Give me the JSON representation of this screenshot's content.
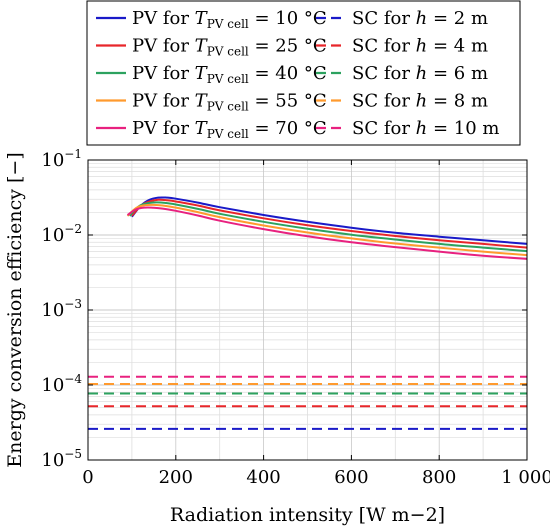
{
  "chart_data": {
    "type": "line",
    "xlabel": "Radiation intensity [W m−2]",
    "ylabel": "Energy conversion efficiency [−]",
    "xlim": [
      0,
      1000
    ],
    "ylim": [
      1e-05,
      0.1
    ],
    "yscale": "log",
    "grid": "on",
    "legend_position": "top",
    "x_ticks": [
      "0",
      "200",
      "400",
      "600",
      "800",
      "1 000"
    ],
    "y_ticks": [
      {
        "base": "10",
        "exp": "−5"
      },
      {
        "base": "10",
        "exp": "−4"
      },
      {
        "base": "10",
        "exp": "−3"
      },
      {
        "base": "10",
        "exp": "−2"
      },
      {
        "base": "10",
        "exp": "−1"
      }
    ],
    "legend": [
      {
        "pre": "PV for ",
        "sym": "T",
        "sub": "PV cell",
        "post": " = 10 °C",
        "color": "#1a1ac8",
        "dash": false
      },
      {
        "pre": "SC for ",
        "sym": "h",
        "sub": "",
        "post": " = 2 m",
        "color": "#1a1ac8",
        "dash": true
      },
      {
        "pre": "PV for ",
        "sym": "T",
        "sub": "PV cell",
        "post": " = 25 °C",
        "color": "#e8262a",
        "dash": false
      },
      {
        "pre": "SC for ",
        "sym": "h",
        "sub": "",
        "post": " = 4 m",
        "color": "#e8262a",
        "dash": true
      },
      {
        "pre": "PV for ",
        "sym": "T",
        "sub": "PV cell",
        "post": " = 40 °C",
        "color": "#2ca25f",
        "dash": false
      },
      {
        "pre": "SC for ",
        "sym": "h",
        "sub": "",
        "post": " = 6 m",
        "color": "#2ca25f",
        "dash": true
      },
      {
        "pre": "PV for ",
        "sym": "T",
        "sub": "PV cell",
        "post": " = 55 °C",
        "color": "#ff9a2e",
        "dash": false
      },
      {
        "pre": "SC for ",
        "sym": "h",
        "sub": "",
        "post": " = 8 m",
        "color": "#ff9a2e",
        "dash": true
      },
      {
        "pre": "PV for ",
        "sym": "T",
        "sub": "PV cell",
        "post": " = 70 °C",
        "color": "#e8217f",
        "dash": false
      },
      {
        "pre": "SC for ",
        "sym": "h",
        "sub": "",
        "post": " = 10 m",
        "color": "#e8217f",
        "dash": true
      }
    ],
    "series": [
      {
        "color": "#1a1ac8",
        "dash": false,
        "x": [
          100,
          120,
          140,
          160,
          180,
          200,
          250,
          300,
          400,
          500,
          600,
          700,
          800,
          900,
          1000
        ],
        "y": [
          0.0175,
          0.0245,
          0.0295,
          0.0315,
          0.0315,
          0.0305,
          0.027,
          0.0235,
          0.0185,
          0.015,
          0.0125,
          0.0107,
          0.0095,
          0.0085,
          0.0076
        ]
      },
      {
        "color": "#e8262a",
        "dash": false,
        "x": [
          100,
          120,
          140,
          160,
          180,
          200,
          250,
          300,
          400,
          500,
          600,
          700,
          800,
          900,
          1000
        ],
        "y": [
          0.018,
          0.0245,
          0.028,
          0.0295,
          0.029,
          0.028,
          0.0247,
          0.0213,
          0.0167,
          0.0135,
          0.0113,
          0.0097,
          0.0085,
          0.0076,
          0.0068
        ]
      },
      {
        "color": "#2ca25f",
        "dash": false,
        "x": [
          95,
          115,
          135,
          155,
          175,
          200,
          250,
          300,
          400,
          500,
          600,
          700,
          800,
          900,
          1000
        ],
        "y": [
          0.018,
          0.024,
          0.0265,
          0.0272,
          0.0268,
          0.0255,
          0.0223,
          0.0192,
          0.015,
          0.0121,
          0.0101,
          0.0087,
          0.0076,
          0.0068,
          0.0061
        ]
      },
      {
        "color": "#ff9a2e",
        "dash": false,
        "x": [
          90,
          110,
          130,
          150,
          170,
          200,
          250,
          300,
          400,
          500,
          600,
          700,
          800,
          900,
          1000
        ],
        "y": [
          0.018,
          0.023,
          0.025,
          0.0252,
          0.0247,
          0.0232,
          0.0202,
          0.0173,
          0.0134,
          0.0108,
          0.009,
          0.0077,
          0.0068,
          0.006,
          0.0054
        ]
      },
      {
        "color": "#e8217f",
        "dash": false,
        "x": [
          90,
          110,
          130,
          150,
          170,
          200,
          250,
          300,
          400,
          500,
          600,
          700,
          800,
          900,
          1000
        ],
        "y": [
          0.0185,
          0.022,
          0.0232,
          0.0231,
          0.0225,
          0.021,
          0.0182,
          0.0155,
          0.012,
          0.0096,
          0.008,
          0.0069,
          0.006,
          0.0053,
          0.0048
        ]
      },
      {
        "color": "#1a1ac8",
        "dash": true,
        "x": [
          0,
          1000
        ],
        "y": [
          2.6e-05,
          2.6e-05
        ]
      },
      {
        "color": "#e8262a",
        "dash": true,
        "x": [
          0,
          1000
        ],
        "y": [
          5.2e-05,
          5.2e-05
        ]
      },
      {
        "color": "#2ca25f",
        "dash": true,
        "x": [
          0,
          1000
        ],
        "y": [
          7.7e-05,
          7.7e-05
        ]
      },
      {
        "color": "#ff9a2e",
        "dash": true,
        "x": [
          0,
          1000
        ],
        "y": [
          0.000103,
          0.000103
        ]
      },
      {
        "color": "#e8217f",
        "dash": true,
        "x": [
          0,
          1000
        ],
        "y": [
          0.000129,
          0.000129
        ]
      }
    ]
  }
}
